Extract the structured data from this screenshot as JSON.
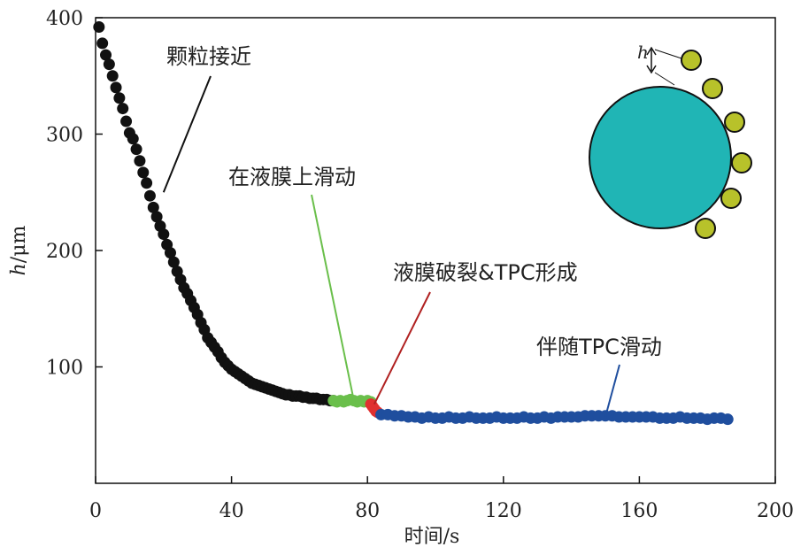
{
  "chart_data": {
    "type": "scatter",
    "title": "",
    "xlabel": "时间/s",
    "ylabel": "h/μm",
    "ylabel_italic": "h",
    "ylabel_unit": "/μm",
    "xlim": [
      0,
      200
    ],
    "ylim": [
      0,
      400
    ],
    "x_ticks": [
      0,
      40,
      80,
      120,
      160,
      200
    ],
    "y_ticks": [
      100,
      200,
      300,
      400
    ],
    "grid": false,
    "series": [
      {
        "color": "#111111",
        "x": [
          1,
          2,
          3,
          4,
          5,
          6,
          7,
          8,
          9,
          10,
          11,
          12,
          13,
          14,
          15,
          16,
          17,
          18,
          19,
          20,
          21,
          22,
          23,
          24,
          25,
          26,
          27,
          28,
          29,
          30,
          31,
          32,
          33,
          34,
          35,
          36,
          37,
          38,
          39,
          40,
          41,
          42,
          43,
          44,
          45,
          46,
          47,
          48,
          49,
          50,
          51,
          52,
          53,
          54,
          55,
          56,
          57,
          58,
          59,
          60,
          61,
          62,
          63,
          64,
          65,
          66,
          67,
          68,
          69,
          70
        ],
        "y": [
          392,
          378,
          368,
          360,
          350,
          340,
          331,
          322,
          311,
          301,
          296,
          287,
          277,
          267,
          258,
          247,
          237,
          229,
          221,
          214,
          205,
          198,
          190,
          182,
          175,
          168,
          163,
          157,
          151,
          145,
          138,
          132,
          125,
          121,
          117,
          113,
          108,
          104,
          101,
          98,
          96,
          94,
          92,
          90,
          88,
          86,
          85,
          84,
          83,
          82,
          81,
          80,
          79,
          78,
          77,
          76,
          76,
          75,
          75,
          75,
          74,
          74,
          73,
          73,
          73,
          72,
          72,
          72,
          71,
          71
        ]
      },
      {
        "color": "#6abf4b",
        "x": [
          70,
          71,
          72,
          73,
          74,
          75,
          76,
          77,
          78,
          79,
          80,
          81
        ],
        "y": [
          71,
          70,
          71,
          70,
          71,
          72,
          71,
          70,
          71,
          70,
          71,
          70
        ]
      },
      {
        "color": "#e03030",
        "x": [
          81,
          81.5,
          82,
          82.5,
          83
        ],
        "y": [
          68,
          66,
          64,
          62,
          61
        ]
      },
      {
        "color": "#1f4e9e",
        "x": [
          84,
          86,
          88,
          90,
          92,
          94,
          96,
          98,
          100,
          102,
          104,
          106,
          108,
          110,
          112,
          114,
          116,
          118,
          120,
          122,
          124,
          126,
          128,
          130,
          132,
          134,
          136,
          138,
          140,
          142,
          144,
          146,
          148,
          150,
          152,
          154,
          156,
          158,
          160,
          162,
          164,
          166,
          168,
          170,
          172,
          174,
          176,
          178,
          180,
          182,
          184,
          186
        ],
        "y": [
          59,
          59,
          58,
          58,
          57,
          57,
          56,
          57,
          56,
          56,
          57,
          56,
          56,
          57,
          56,
          56,
          56,
          57,
          56,
          56,
          56,
          57,
          56,
          56,
          57,
          56,
          57,
          57,
          57,
          57,
          58,
          58,
          58,
          58,
          58,
          57,
          57,
          57,
          57,
          57,
          57,
          56,
          56,
          56,
          57,
          56,
          56,
          56,
          55,
          56,
          56,
          55
        ]
      }
    ],
    "annotations": [
      {
        "text": "颗粒接近",
        "color": "#111111",
        "at": [
          20,
          250
        ]
      },
      {
        "text": "在液膜上滑动",
        "color": "#6abf4b",
        "at": [
          76,
          71
        ]
      },
      {
        "text": "液膜破裂&TPC形成",
        "color": "#b02020",
        "at": [
          82,
          68
        ]
      },
      {
        "text": "伴随TPC滑动",
        "color": "#1f4e9e",
        "at": [
          150,
          57
        ]
      }
    ],
    "inset": {
      "large_particle_color": "#20b5b5",
      "small_particle_color": "#b8c22a",
      "gap_label": "h"
    }
  }
}
